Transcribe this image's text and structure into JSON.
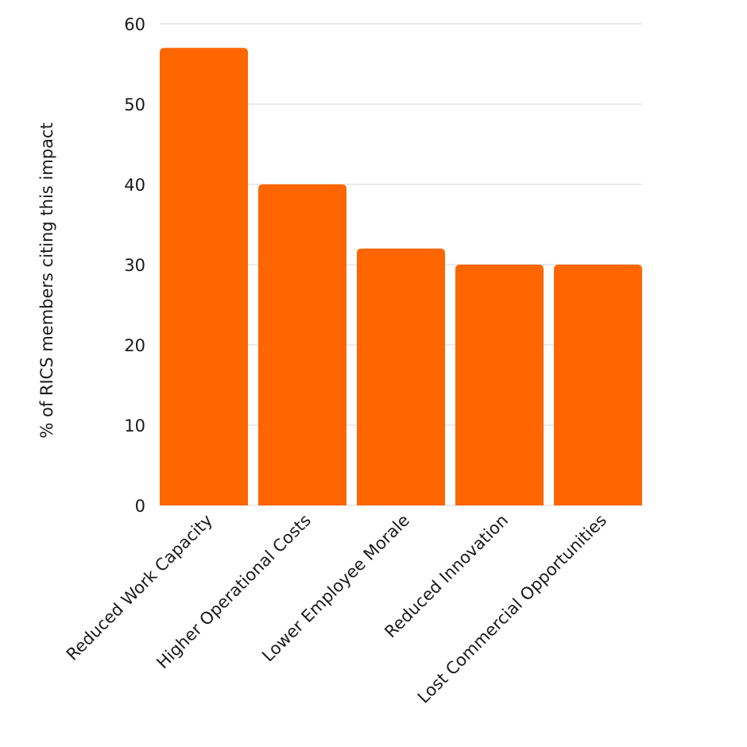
{
  "chart_data": {
    "type": "bar",
    "title": "",
    "xlabel": "",
    "ylabel": "% of RICS members citing this impact",
    "categories": [
      "Reduced Work Capacity",
      "Higher Operational Costs",
      "Lower Employee Morale",
      "Reduced Innovation",
      "Lost Commercial Opportunities"
    ],
    "values": [
      57,
      40,
      32,
      30,
      30
    ],
    "ylim": [
      0,
      60
    ],
    "yticks": [
      0,
      10,
      20,
      30,
      40,
      50,
      60
    ],
    "grid": true,
    "legend": "none",
    "bar_color": "#ff6600",
    "grid_color": "#d6d6d6"
  }
}
